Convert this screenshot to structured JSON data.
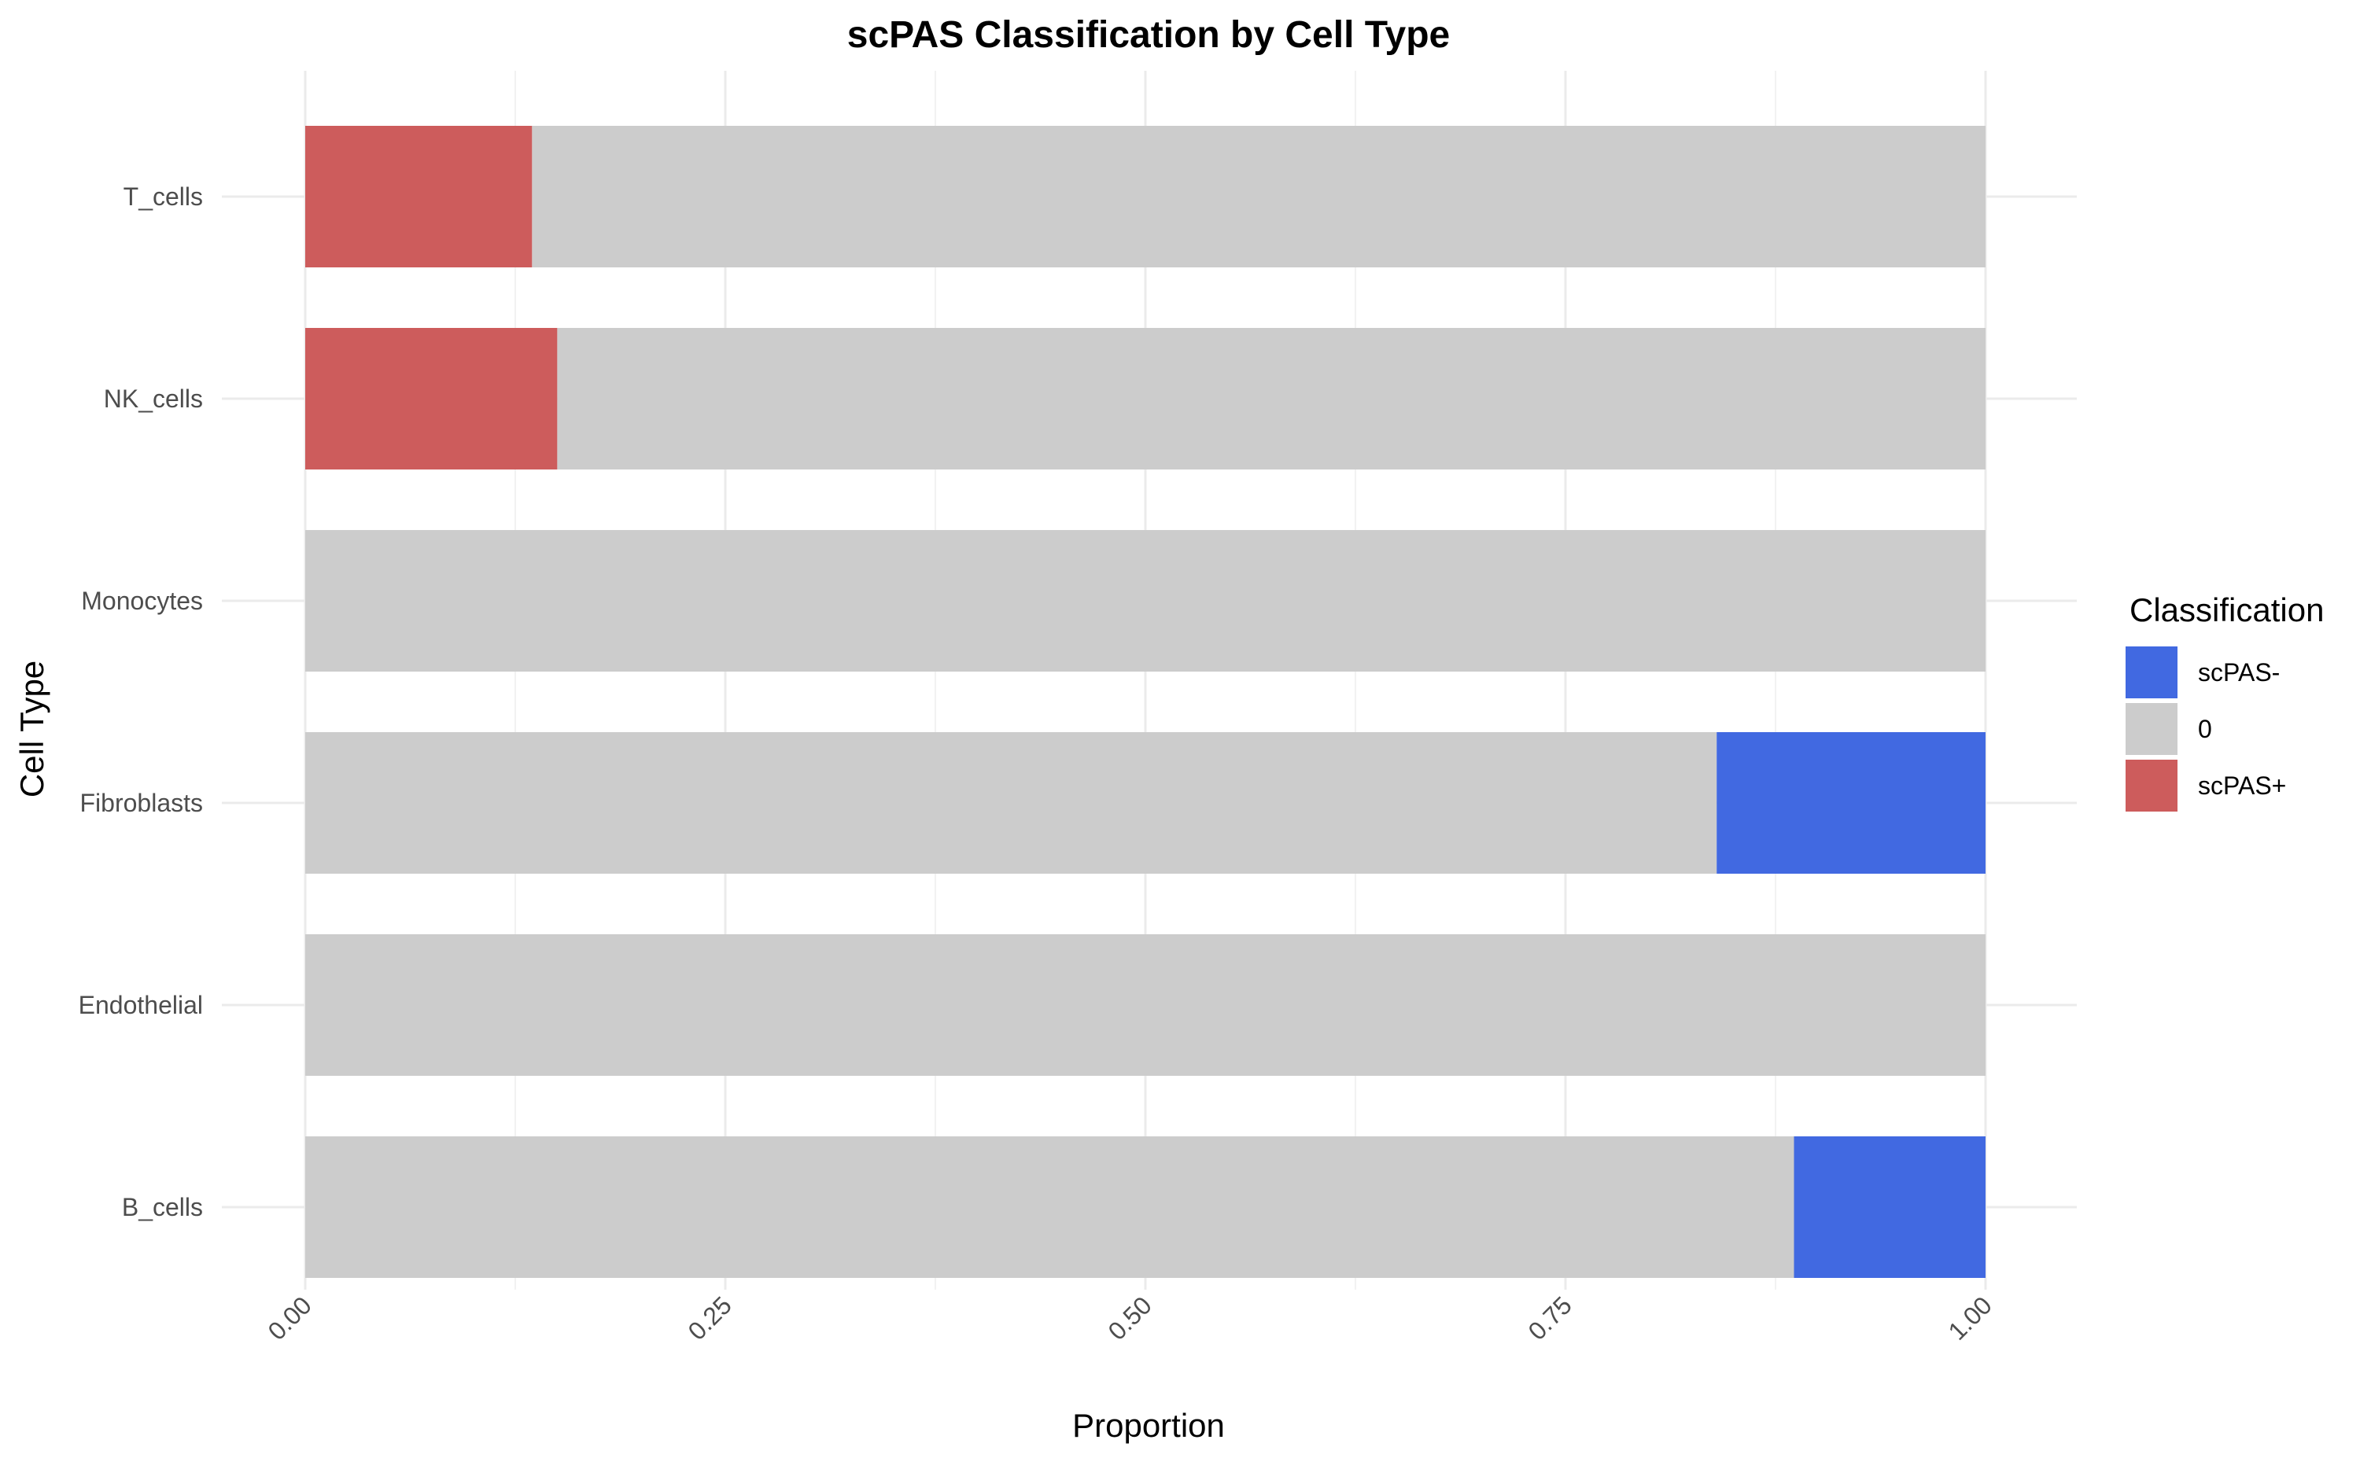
{
  "chart_data": {
    "type": "bar",
    "orientation": "horizontal",
    "stacked": true,
    "title": "scPAS Classification by Cell Type",
    "xlabel": "Proportion",
    "ylabel": "Cell Type",
    "xlim": [
      0,
      1
    ],
    "x_ticks": [
      "0.00",
      "0.25",
      "0.50",
      "0.75",
      "1.00"
    ],
    "x_tick_values": [
      0,
      0.25,
      0.5,
      0.75,
      1
    ],
    "grid": true,
    "categories": [
      "T_cells",
      "NK_cells",
      "Monocytes",
      "Fibroblasts",
      "Endothelial",
      "B_cells"
    ],
    "stack_order": [
      "scPAS+",
      "0",
      "scPAS-"
    ],
    "series": [
      {
        "name": "scPAS-",
        "color": "#4169E1",
        "values": [
          0,
          0,
          0,
          0.16,
          0,
          0.114
        ]
      },
      {
        "name": "0",
        "color": "#CCCCCC",
        "values": [
          0.865,
          0.85,
          1.0,
          0.84,
          1.0,
          0.886
        ]
      },
      {
        "name": "scPAS+",
        "color": "#CD5C5C",
        "values": [
          0.135,
          0.15,
          0,
          0,
          0,
          0
        ]
      }
    ],
    "legend": {
      "title": "Classification",
      "position": "right",
      "items": [
        "scPAS-",
        "0",
        "scPAS+"
      ]
    }
  }
}
